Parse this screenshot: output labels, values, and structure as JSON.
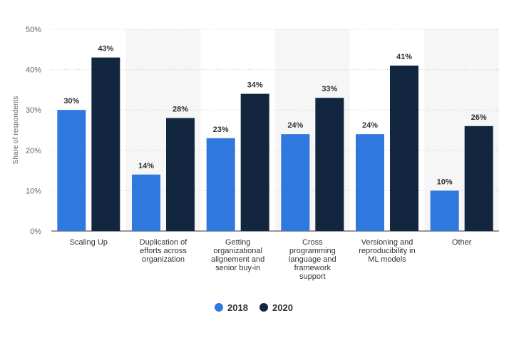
{
  "chart_data": {
    "type": "bar",
    "categories": [
      [
        "Scaling Up"
      ],
      [
        "Duplication of",
        "efforts across",
        "organization"
      ],
      [
        "Getting",
        "organizational",
        "alignement and",
        "senior buy-in"
      ],
      [
        "Cross",
        "programming",
        "language and",
        "framework",
        "support"
      ],
      [
        "Versioning and",
        "reproducibility in",
        "ML models"
      ],
      [
        "Other"
      ]
    ],
    "series": [
      {
        "name": "2018",
        "color": "#2f78de",
        "values": [
          30,
          14,
          23,
          24,
          24,
          10
        ],
        "labels": [
          "30%",
          "14%",
          "23%",
          "24%",
          "24%",
          "10%"
        ]
      },
      {
        "name": "2020",
        "color": "#13263f",
        "values": [
          43,
          28,
          34,
          33,
          41,
          26
        ],
        "labels": [
          "43%",
          "28%",
          "34%",
          "33%",
          "41%",
          "26%"
        ]
      }
    ],
    "ylabel": "Share of respondents",
    "ylim": [
      0,
      50
    ],
    "yticks": [
      0,
      10,
      20,
      30,
      40,
      50
    ],
    "ytick_labels": [
      "0%",
      "10%",
      "20%",
      "30%",
      "40%",
      "50%"
    ],
    "grid": true,
    "legend_position": "bottom-center"
  }
}
